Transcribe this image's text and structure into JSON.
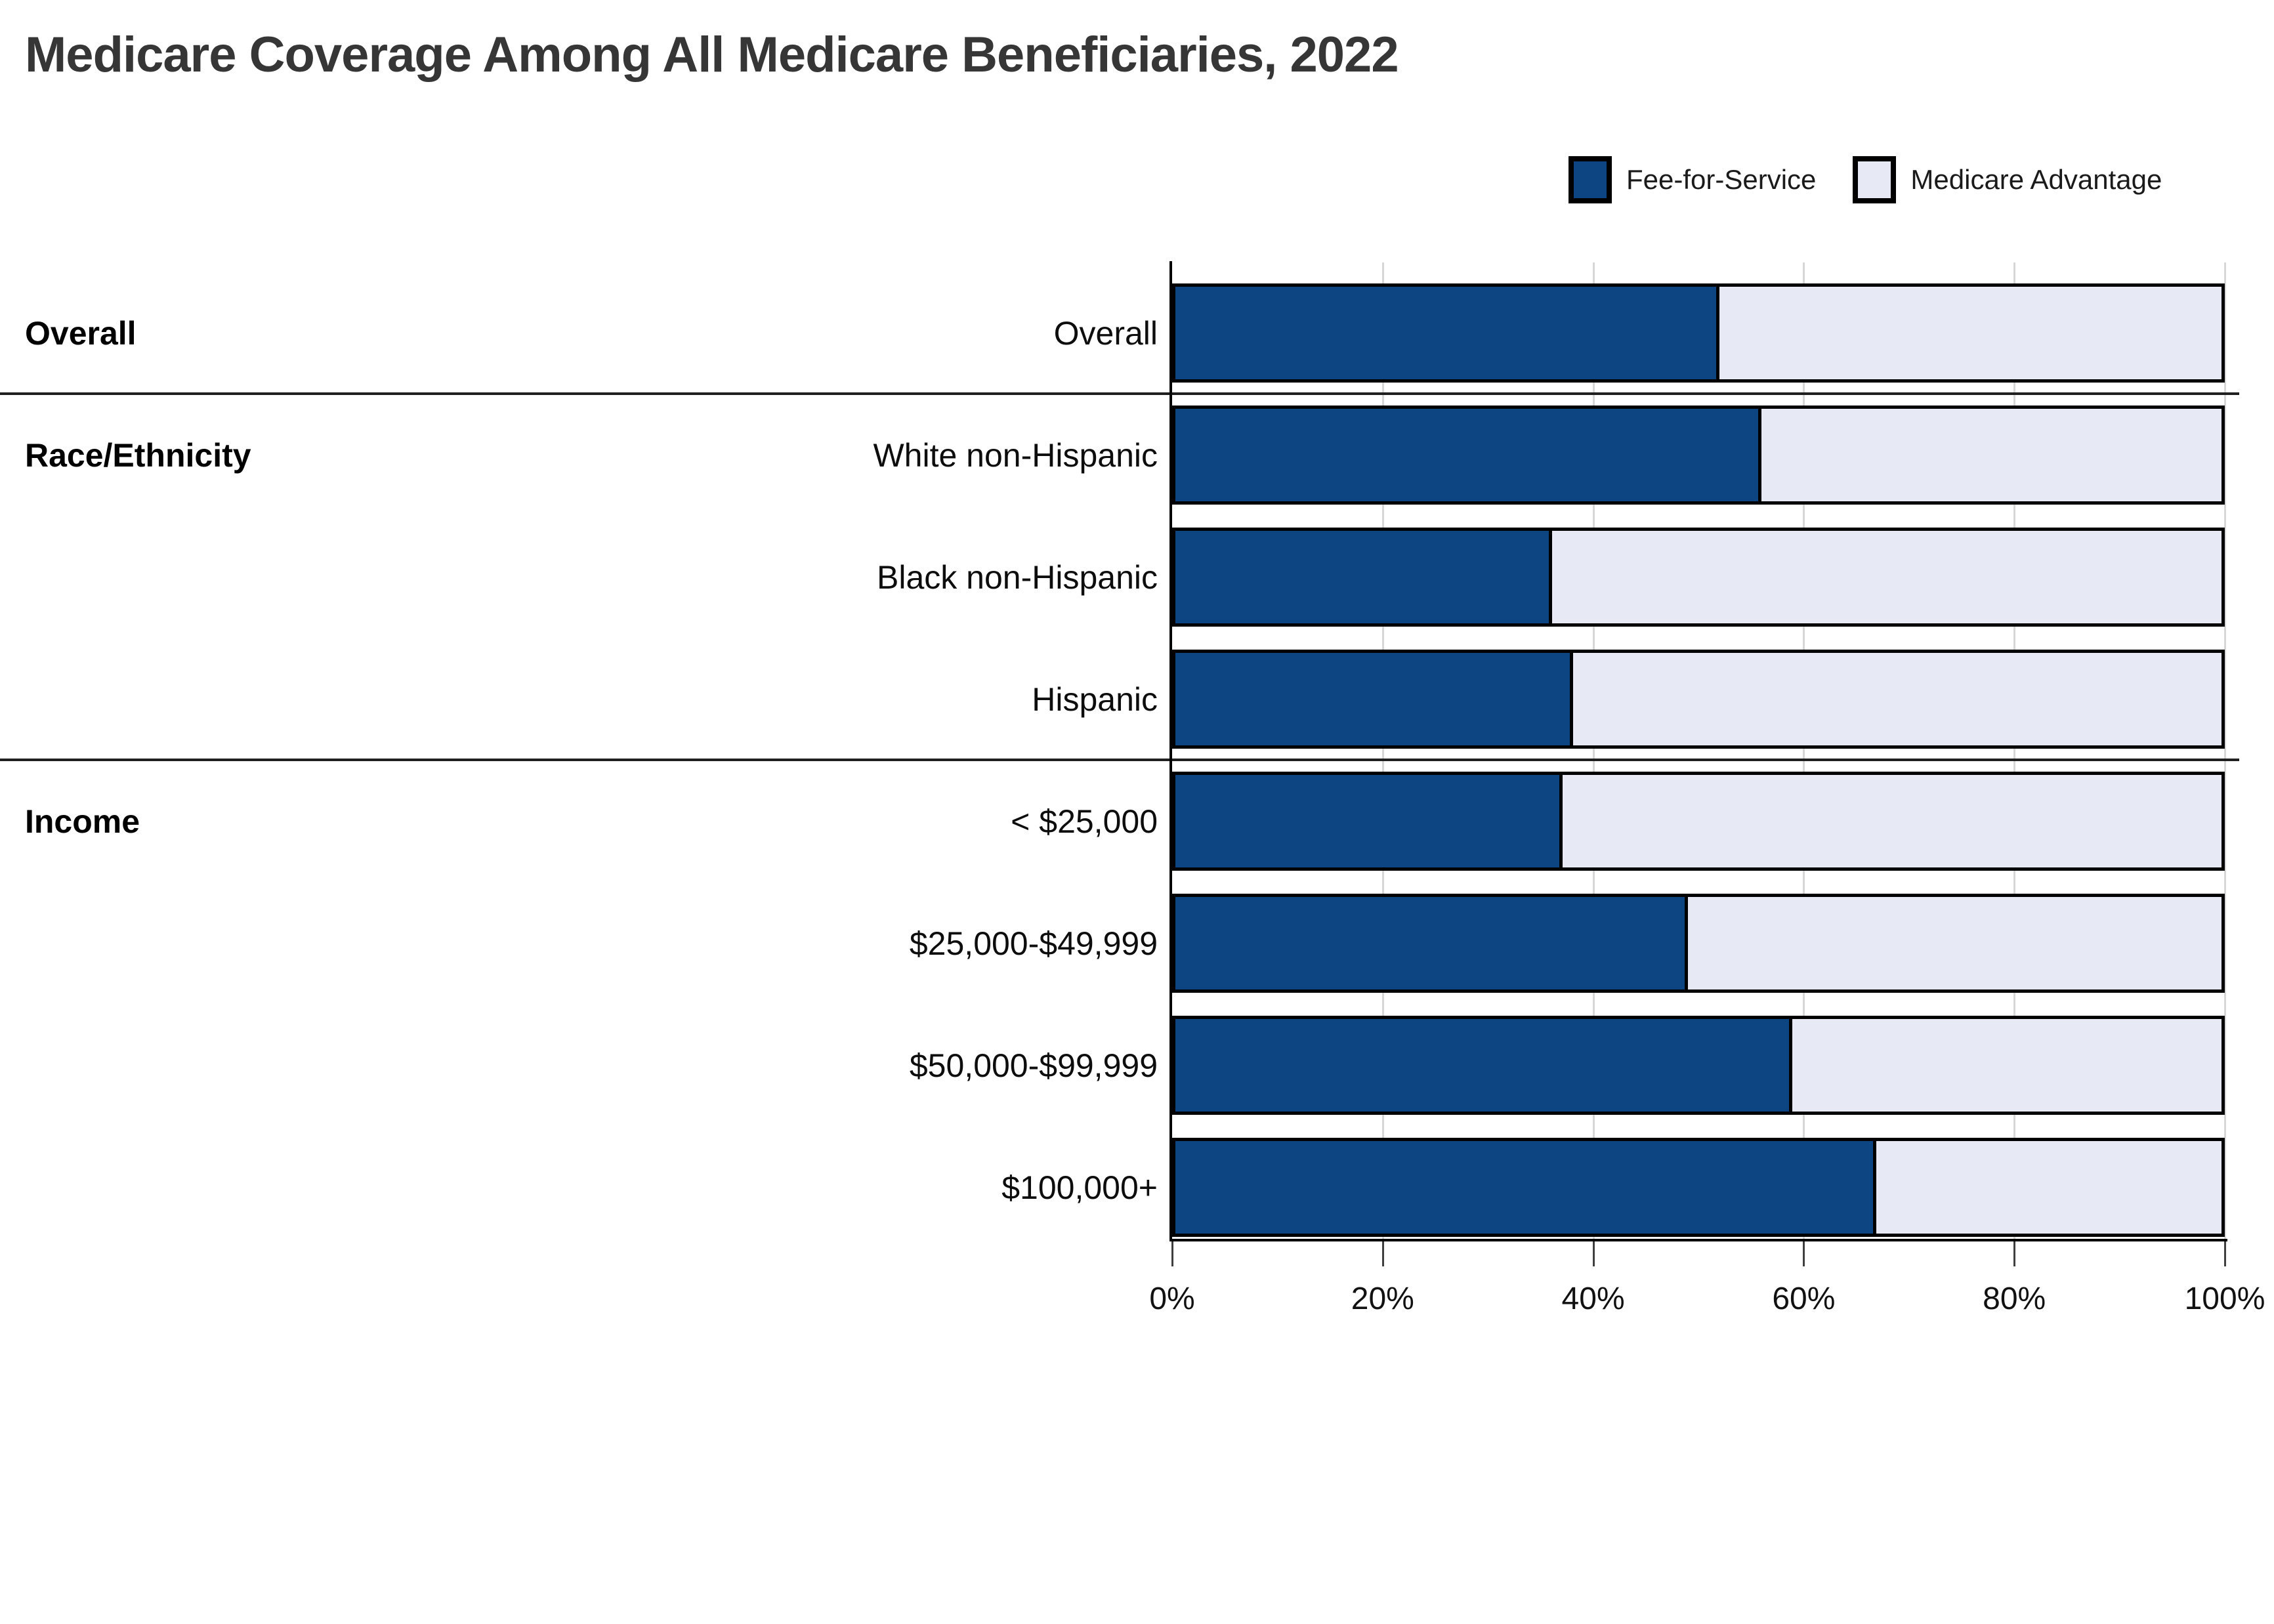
{
  "title": "Medicare Coverage Among All Medicare Beneficiaries, 2022",
  "legend": [
    {
      "label": "Fee-for-Service",
      "color": "#0D4583"
    },
    {
      "label": "Medicare Advantage",
      "color": "#E7EAF4"
    }
  ],
  "colors": {
    "fee_for_service": "#0D4583",
    "medicare_advantage": "#E7EAF4",
    "bar_border": "#000000",
    "gridline": "#d7d7d7",
    "title_text": "#363636"
  },
  "chart_data": {
    "type": "bar",
    "orientation": "horizontal",
    "stacked": true,
    "unit": "percent",
    "title": "Medicare Coverage Among All Medicare Beneficiaries, 2022",
    "categories": [
      "Overall",
      "White non-Hispanic",
      "Black non-Hispanic",
      "Hispanic",
      "< $25,000",
      "$25,000-$49,999",
      "$50,000-$99,999",
      "$100,000+"
    ],
    "sections": [
      {
        "label": "Overall",
        "start_index": 0
      },
      {
        "label": "Race/Ethnicity",
        "start_index": 1
      },
      {
        "label": "Income",
        "start_index": 4
      }
    ],
    "series": [
      {
        "name": "Fee-for-Service",
        "color": "#0D4583",
        "values": [
          52,
          56,
          36,
          38,
          37,
          49,
          59,
          67
        ]
      },
      {
        "name": "Medicare Advantage",
        "color": "#E7EAF4",
        "values": [
          48,
          44,
          64,
          62,
          63,
          51,
          41,
          33
        ]
      }
    ],
    "x_axis": {
      "min": 0,
      "max": 100,
      "tick_labels": [
        "0%",
        "20%",
        "40%",
        "60%",
        "80%",
        "100%"
      ]
    },
    "grid": true,
    "legend_position": "top-right"
  }
}
